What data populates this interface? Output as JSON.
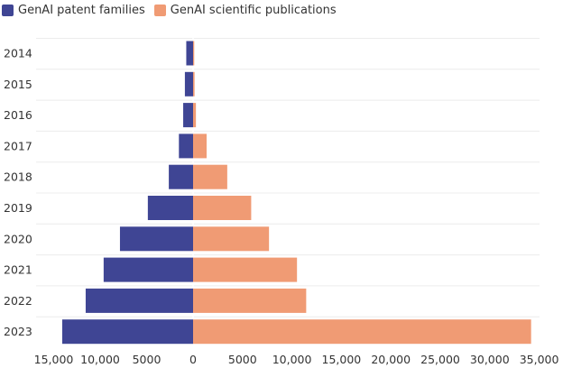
{
  "chart_data": {
    "type": "bar",
    "orientation": "horizontal-diverging",
    "title": "",
    "xlabel": "",
    "ylabel": "",
    "categories": [
      "2014",
      "2015",
      "2016",
      "2017",
      "2018",
      "2019",
      "2020",
      "2021",
      "2022",
      "2023"
    ],
    "series": [
      {
        "name": "GenAI patent families",
        "color": "#3f4594",
        "side": "left",
        "values": [
          733,
          882,
          1064,
          1525,
          2612,
          4868,
          7868,
          9624,
          11558,
          14080
        ]
      },
      {
        "name": "GenAI scientific publications",
        "color": "#f09b74",
        "side": "right",
        "values": [
          116,
          150,
          287,
          1368,
          3455,
          5876,
          7678,
          10508,
          11439,
          34183
        ]
      }
    ],
    "left_tick_labels": [
      "15,000",
      "10,000",
      "5000",
      "0"
    ],
    "left_tick_values": [
      15000,
      10000,
      5000,
      0
    ],
    "right_tick_labels": [
      "5000",
      "10,000",
      "15,000",
      "20,000",
      "25,000",
      "30,000",
      "35,000"
    ],
    "right_tick_values": [
      5000,
      10000,
      15000,
      20000,
      25000,
      30000,
      35000
    ],
    "grid": true,
    "legend": "top-left"
  }
}
